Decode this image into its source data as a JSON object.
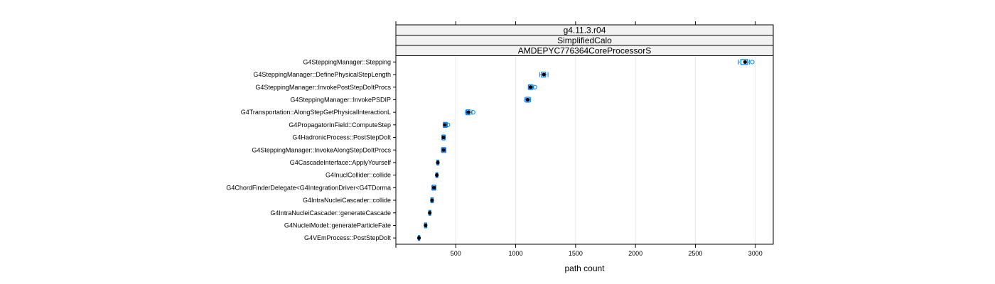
{
  "chart_data": {
    "type": "dotplot",
    "strips": [
      "g4.11.3.r04",
      "SimplifiedCalo",
      "AMDEPYC776364CoreProcessorS"
    ],
    "xlabel": "path count",
    "xlim": [
      0,
      3150
    ],
    "xticks": [
      500,
      1000,
      1500,
      2000,
      2500,
      3000
    ],
    "grid": true,
    "categories": [
      "G4SteppingManager::Stepping",
      "G4SteppingManager::DefinePhysicalStepLength",
      "G4SteppingManager::InvokePostStepDoItProcs",
      "G4SteppingManager::InvokePSDIP",
      "G4Transportation::AlongStepGetPhysicalInteractionL",
      "G4PropagatorInField::ComputeStep",
      "G4HadronicProcess::PostStepDoIt",
      "G4SteppingManager::InvokeAlongStepDoItProcs",
      "G4CascadeInterface::ApplyYourself",
      "G4InuclCollider::collide",
      "G4ChordFinderDelegate<G4IntegrationDriver<G4TDorma",
      "G4IntraNucleiCascader::collide",
      "G4IntraNucleiCascader::generateCascade",
      "G4NucleiModel::generateParticleFate",
      "G4VEmProcess::PostStepDoIt"
    ],
    "median": [
      2915,
      1235,
      1125,
      1100,
      605,
      410,
      398,
      398,
      350,
      342,
      318,
      302,
      283,
      248,
      193
    ],
    "q1": [
      2880,
      1215,
      1110,
      1085,
      590,
      398,
      388,
      385,
      345,
      336,
      305,
      295,
      277,
      241,
      188
    ],
    "q3": [
      2935,
      1250,
      1140,
      1115,
      618,
      425,
      408,
      412,
      356,
      348,
      330,
      310,
      289,
      255,
      198
    ],
    "whisker_low": [
      2860,
      1200,
      1105,
      1075,
      580,
      395,
      383,
      380,
      341,
      333,
      300,
      291,
      274,
      238,
      186
    ],
    "whisker_high": [
      2950,
      1270,
      1150,
      1125,
      635,
      430,
      413,
      418,
      360,
      351,
      335,
      313,
      292,
      258,
      200
    ],
    "outliers": [
      [
        2975
      ],
      [],
      [
        1160
      ],
      [],
      [
        645
      ],
      [
        435
      ],
      [],
      [],
      [],
      [],
      [],
      [],
      [],
      [],
      []
    ],
    "colors": {
      "box": "#0080ff",
      "median": "#000000",
      "strip": "#f2f2f2",
      "grid": "#e6e6e6",
      "frame": "#000000"
    }
  }
}
